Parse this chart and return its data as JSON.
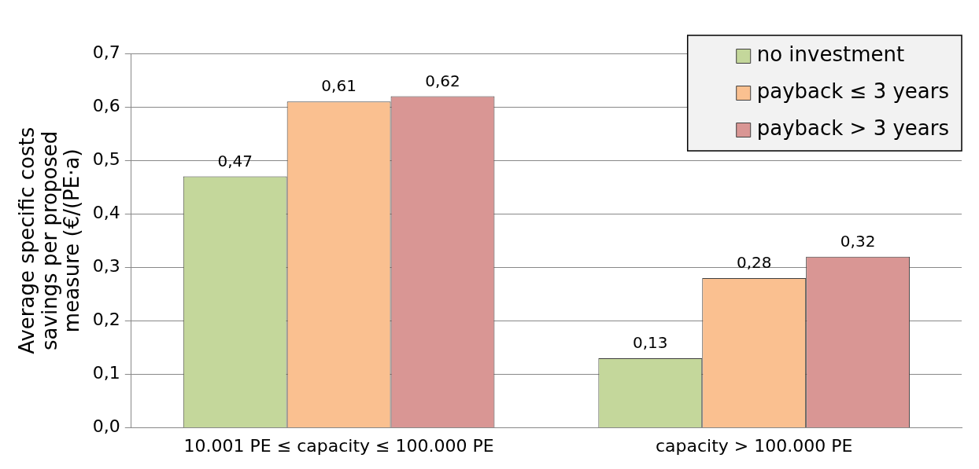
{
  "chart_data": {
    "type": "bar",
    "ylabel": "Average specific costs savings per proposed measure (€/(PE·a)",
    "categories": [
      "10.001 PE ≤ capacity ≤ 100.000 PE",
      "capacity > 100.000 PE"
    ],
    "series": [
      {
        "name": "no investment",
        "color": "#c4d79b",
        "values": [
          0.47,
          0.13
        ],
        "value_labels": [
          "0,47",
          "0,13"
        ]
      },
      {
        "name": "payback ≤ 3 years",
        "color": "#fac090",
        "values": [
          0.61,
          0.28
        ],
        "value_labels": [
          "0,61",
          "0,28"
        ]
      },
      {
        "name": "payback > 3 years",
        "color": "#d99694",
        "values": [
          0.62,
          0.32
        ],
        "value_labels": [
          "0,62",
          "0,32"
        ]
      }
    ],
    "ylim": [
      0,
      0.7
    ],
    "yticks": [
      {
        "value": 0,
        "label": "0,0"
      },
      {
        "value": 0.1,
        "label": "0,1"
      },
      {
        "value": 0.2,
        "label": "0,2"
      },
      {
        "value": 0.3,
        "label": "0,3"
      },
      {
        "value": 0.4,
        "label": "0,4"
      },
      {
        "value": 0.5,
        "label": "0,5"
      },
      {
        "value": 0.6,
        "label": "0,6"
      },
      {
        "value": 0.7,
        "label": "0,7"
      }
    ],
    "grid": "y",
    "legend": "top right"
  }
}
